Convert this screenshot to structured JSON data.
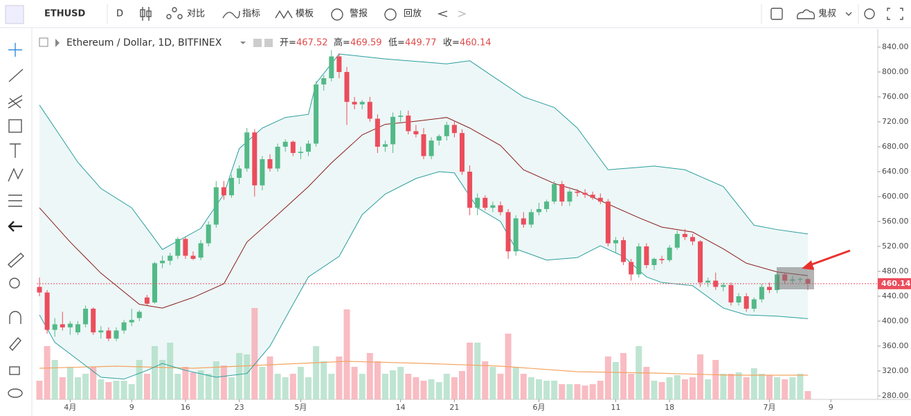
{
  "toolbar": {
    "symbol": "ETHUSD",
    "interval": "D",
    "buttons": [
      "对比",
      "指标",
      "模板",
      "警报",
      "回放"
    ],
    "user": "鬼叔"
  },
  "chart_data": {
    "type": "candlestick",
    "title": "Ethereum / Dollar, 1D, BITFINEX",
    "ohlc_labels": [
      "开=",
      "高=",
      "低=",
      "收="
    ],
    "up_color": "#53b987",
    "down_color": "#eb4d5c",
    "open": [
      455,
      446,
      386,
      395,
      390,
      382,
      395,
      420,
      382,
      385,
      372,
      385,
      398,
      405,
      438,
      430,
      493,
      497,
      505,
      532,
      505,
      502,
      525,
      555,
      615,
      602,
      630,
      645,
      703,
      618,
      660,
      645,
      680,
      688,
      670,
      672,
      685,
      780,
      790,
      825,
      800,
      752,
      748,
      752,
      725,
      680,
      684,
      728,
      730,
      705,
      700,
      665,
      690,
      697,
      715,
      702,
      640,
      582,
      598,
      582,
      586,
      575,
      512,
      565,
      555,
      575,
      580,
      592,
      620,
      592,
      608,
      606,
      603,
      598,
      592,
      525,
      530,
      495,
      475,
      520,
      490,
      500,
      498,
      518,
      540,
      535,
      528,
      462,
      465,
      455,
      458,
      430,
      440,
      420,
      435,
      455,
      450,
      475,
      465,
      467,
      467.52
    ],
    "high": [
      470,
      450,
      405,
      415,
      400,
      400,
      425,
      422,
      392,
      390,
      390,
      402,
      420,
      418,
      442,
      495,
      505,
      510,
      535,
      535,
      512,
      530,
      560,
      625,
      625,
      635,
      650,
      710,
      708,
      665,
      668,
      685,
      692,
      690,
      680,
      690,
      785,
      795,
      835,
      830,
      808,
      760,
      755,
      760,
      732,
      690,
      735,
      738,
      738,
      715,
      710,
      695,
      700,
      720,
      720,
      708,
      650,
      605,
      602,
      592,
      592,
      580,
      570,
      575,
      580,
      590,
      595,
      625,
      625,
      612,
      612,
      612,
      608,
      605,
      596,
      535,
      535,
      500,
      525,
      525,
      502,
      505,
      522,
      545,
      548,
      540,
      530,
      470,
      478,
      462,
      462,
      445,
      445,
      438,
      460,
      462,
      480,
      478,
      472,
      470,
      469.59
    ],
    "low": [
      440,
      380,
      375,
      385,
      378,
      378,
      390,
      378,
      372,
      368,
      368,
      380,
      392,
      400,
      425,
      428,
      485,
      490,
      500,
      500,
      498,
      498,
      520,
      550,
      595,
      598,
      620,
      640,
      600,
      610,
      640,
      640,
      672,
      665,
      660,
      665,
      680,
      770,
      785,
      790,
      715,
      740,
      740,
      720,
      670,
      672,
      670,
      720,
      700,
      695,
      660,
      660,
      682,
      690,
      695,
      635,
      570,
      570,
      578,
      575,
      570,
      500,
      505,
      550,
      550,
      570,
      575,
      588,
      585,
      585,
      600,
      598,
      595,
      588,
      520,
      510,
      490,
      465,
      470,
      485,
      482,
      492,
      495,
      515,
      530,
      522,
      455,
      455,
      450,
      448,
      425,
      425,
      415,
      415,
      430,
      445,
      445,
      460,
      460,
      462,
      449.77
    ],
    "close": [
      446,
      386,
      395,
      390,
      396,
      395,
      420,
      382,
      385,
      372,
      385,
      398,
      402,
      415,
      428,
      493,
      497,
      505,
      532,
      505,
      500,
      525,
      555,
      615,
      602,
      630,
      645,
      703,
      618,
      660,
      645,
      680,
      688,
      670,
      672,
      685,
      780,
      790,
      825,
      800,
      752,
      748,
      752,
      725,
      680,
      684,
      728,
      730,
      705,
      700,
      665,
      690,
      697,
      715,
      702,
      640,
      582,
      598,
      582,
      586,
      575,
      512,
      565,
      555,
      575,
      580,
      592,
      620,
      592,
      608,
      606,
      603,
      598,
      592,
      525,
      530,
      495,
      475,
      520,
      490,
      500,
      498,
      518,
      540,
      535,
      528,
      462,
      465,
      455,
      458,
      430,
      440,
      420,
      435,
      455,
      450,
      475,
      465,
      467,
      467.52,
      460.14
    ],
    "volume": [
      27,
      77,
      57,
      32,
      47,
      32,
      37,
      47,
      29,
      25,
      27,
      27,
      22,
      57,
      37,
      77,
      57,
      82,
      37,
      47,
      39,
      42,
      37,
      55,
      49,
      32,
      67,
      65,
      132,
      47,
      62,
      37,
      32,
      37,
      47,
      32,
      77,
      55,
      37,
      62,
      130,
      47,
      37,
      67,
      55,
      37,
      42,
      47,
      37,
      32,
      27,
      29,
      25,
      37,
      32,
      41,
      82,
      82,
      55,
      47,
      37,
      95,
      47,
      37,
      32,
      29,
      27,
      27,
      22,
      22,
      22,
      20,
      22,
      27,
      62,
      54,
      67,
      37,
      77,
      47,
      27,
      25,
      32,
      35,
      29,
      32,
      65,
      29,
      57,
      37,
      37,
      39,
      32,
      45,
      37,
      35,
      32,
      29,
      32,
      37,
      12
    ],
    "volume_ma": {
      "color": "#f4a460",
      "x": [
        0,
        10,
        20,
        30,
        40,
        50,
        60,
        70,
        80,
        90,
        100
      ],
      "values": [
        45,
        48,
        45,
        50,
        55,
        52,
        48,
        40,
        38,
        35,
        35
      ]
    },
    "bands": [
      {
        "color": "#2a9d9d",
        "x": [
          0,
          5,
          8,
          12,
          15,
          16,
          21,
          24,
          26,
          29,
          32,
          35,
          36,
          39,
          45,
          53,
          56,
          59,
          63,
          67,
          70,
          74,
          77,
          80,
          84,
          89,
          93,
          96,
          100
        ],
        "values": [
          747,
          655,
          613,
          582,
          532,
          515,
          549,
          604,
          677,
          710,
          727,
          732,
          782,
          829,
          821,
          813,
          818,
          793,
          760,
          743,
          710,
          643,
          646,
          649,
          643,
          616,
          554,
          547,
          540
        ]
      },
      {
        "color": "#8b1a1a",
        "x": [
          0,
          4,
          8,
          13,
          16,
          20,
          24,
          27,
          31,
          35,
          38,
          42,
          45,
          49,
          53,
          56,
          60,
          63,
          67,
          70,
          74,
          78,
          81,
          85,
          89,
          92,
          96,
          100
        ],
        "values": [
          582,
          527,
          477,
          427,
          421,
          438,
          460,
          527,
          571,
          616,
          654,
          699,
          716,
          721,
          727,
          710,
          682,
          643,
          621,
          610,
          588,
          566,
          551,
          543,
          516,
          493,
          479,
          473
        ]
      },
      {
        "color": "#2a9d9d",
        "x": [
          0,
          2,
          5,
          8,
          11,
          14,
          16,
          19,
          23,
          27,
          30,
          33,
          35,
          39,
          42,
          45,
          49,
          52,
          54,
          57,
          60,
          62,
          66,
          70,
          73,
          76,
          79,
          81,
          85,
          89,
          92,
          96,
          100
        ],
        "values": [
          410,
          366,
          338,
          310,
          307,
          321,
          332,
          321,
          310,
          316,
          360,
          427,
          471,
          504,
          571,
          604,
          629,
          640,
          638,
          582,
          560,
          516,
          498,
          502,
          521,
          504,
          471,
          462,
          457,
          421,
          410,
          408,
          404
        ]
      }
    ],
    "xlim": [
      -0.36,
      109.1
    ],
    "xticks": [
      {
        "value": 4,
        "label": "4月"
      },
      {
        "value": 12,
        "label": "9"
      },
      {
        "value": 19,
        "label": "16"
      },
      {
        "value": 26,
        "label": "23"
      },
      {
        "value": 34,
        "label": "5月"
      },
      {
        "value": 47,
        "label": "14"
      },
      {
        "value": 54,
        "label": "21"
      },
      {
        "value": 65,
        "label": "6月"
      },
      {
        "value": 75,
        "label": "11"
      },
      {
        "value": 82,
        "label": "18"
      },
      {
        "value": 95,
        "label": "7月"
      },
      {
        "value": 103,
        "label": "9"
      }
    ],
    "ylim": [
      274.4,
      868.9
    ],
    "yticks": [
      {
        "value": 280,
        "label": "280.00"
      },
      {
        "value": 320,
        "label": "320.00"
      },
      {
        "value": 360,
        "label": "360.00"
      },
      {
        "value": 400,
        "label": "400.00"
      },
      {
        "value": 440,
        "label": "440.00"
      },
      {
        "value": 480,
        "label": "480.00"
      },
      {
        "value": 520,
        "label": "520.00"
      },
      {
        "value": 560,
        "label": "560.00"
      },
      {
        "value": 600,
        "label": "600.00"
      },
      {
        "value": 640,
        "label": "640.00"
      },
      {
        "value": 680,
        "label": "680.00"
      },
      {
        "value": 720,
        "label": "720.00"
      },
      {
        "value": 760,
        "label": "760.00"
      },
      {
        "value": 800,
        "label": "800.00"
      },
      {
        "value": 840,
        "label": "840.00"
      }
    ],
    "grid": false
  }
}
